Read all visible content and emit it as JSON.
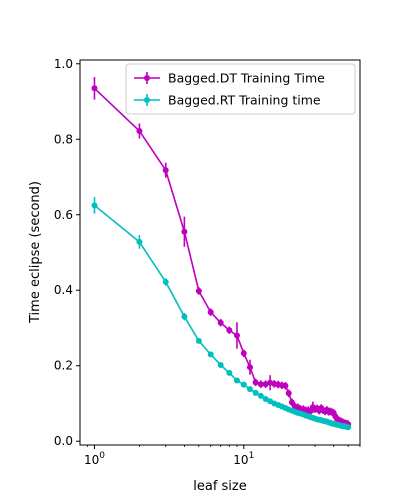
{
  "chart_data": {
    "type": "line",
    "title": "",
    "xlabel": "leaf size",
    "ylabel": "Time eclipse (second)",
    "x_scale": "log",
    "xlim": [
      0.8,
      60
    ],
    "ylim": [
      -0.01,
      1.01
    ],
    "x_ticks": [
      {
        "value": 1,
        "base": "10",
        "exp": "0"
      },
      {
        "value": 10,
        "base": "10",
        "exp": "1"
      }
    ],
    "y_ticks": [
      {
        "value": 0.0,
        "label": "0.0"
      },
      {
        "value": 0.2,
        "label": "0.2"
      },
      {
        "value": 0.4,
        "label": "0.4"
      },
      {
        "value": 0.6,
        "label": "0.6"
      },
      {
        "value": 0.8,
        "label": "0.8"
      },
      {
        "value": 1.0,
        "label": "1.0"
      }
    ],
    "grid": false,
    "legend_position": "top-right",
    "x": [
      1,
      2,
      3,
      4,
      5,
      6,
      7,
      8,
      9,
      10,
      11,
      12,
      13,
      14,
      15,
      16,
      17,
      18,
      19,
      20,
      21,
      22,
      23,
      24,
      25,
      26,
      27,
      28,
      29,
      30,
      31,
      32,
      33,
      34,
      35,
      36,
      37,
      38,
      39,
      40,
      41,
      42,
      43,
      44,
      45,
      46,
      47,
      48,
      49,
      50
    ],
    "series": [
      {
        "name": "Bagged.DT Training Time",
        "color": "#bf00bf",
        "values": [
          0.935,
          0.822,
          0.718,
          0.555,
          0.398,
          0.342,
          0.314,
          0.294,
          0.28,
          0.233,
          0.196,
          0.156,
          0.151,
          0.151,
          0.155,
          0.152,
          0.15,
          0.148,
          0.147,
          0.127,
          0.103,
          0.092,
          0.09,
          0.085,
          0.085,
          0.082,
          0.082,
          0.08,
          0.09,
          0.085,
          0.087,
          0.081,
          0.088,
          0.082,
          0.079,
          0.083,
          0.078,
          0.079,
          0.077,
          0.075,
          0.066,
          0.06,
          0.056,
          0.054,
          0.052,
          0.05,
          0.048,
          0.047,
          0.046,
          0.045
        ],
        "errors": [
          0.03,
          0.02,
          0.02,
          0.04,
          0.01,
          0.01,
          0.01,
          0.01,
          0.035,
          0.01,
          0.02,
          0.01,
          0.01,
          0.01,
          0.02,
          0.01,
          0.01,
          0.01,
          0.01,
          0.01,
          0.01,
          0.01,
          0.01,
          0.01,
          0.01,
          0.01,
          0.01,
          0.01,
          0.015,
          0.01,
          0.01,
          0.01,
          0.01,
          0.01,
          0.01,
          0.01,
          0.01,
          0.01,
          0.01,
          0.01,
          0.01,
          0.01,
          0.01,
          0.01,
          0.01,
          0.01,
          0.01,
          0.01,
          0.01,
          0.01
        ]
      },
      {
        "name": "Bagged.RT Training time",
        "color": "#00bfbf",
        "values": [
          0.625,
          0.528,
          0.422,
          0.33,
          0.266,
          0.23,
          0.202,
          0.181,
          0.161,
          0.15,
          0.138,
          0.128,
          0.12,
          0.112,
          0.106,
          0.1,
          0.096,
          0.092,
          0.088,
          0.084,
          0.081,
          0.078,
          0.075,
          0.073,
          0.071,
          0.068,
          0.066,
          0.064,
          0.062,
          0.06,
          0.058,
          0.057,
          0.056,
          0.054,
          0.053,
          0.052,
          0.05,
          0.049,
          0.047,
          0.046,
          0.045,
          0.044,
          0.043,
          0.042,
          0.041,
          0.04,
          0.04,
          0.039,
          0.038,
          0.037
        ],
        "errors": [
          0.022,
          0.018,
          0.01,
          0.01,
          0.005,
          0.005,
          0.005,
          0.005,
          0.005,
          0.005,
          0.005,
          0.005,
          0.005,
          0.005,
          0.005,
          0.005,
          0.005,
          0.005,
          0.005,
          0.005,
          0.005,
          0.005,
          0.005,
          0.005,
          0.005,
          0.005,
          0.005,
          0.005,
          0.005,
          0.005,
          0.005,
          0.005,
          0.005,
          0.005,
          0.005,
          0.005,
          0.005,
          0.005,
          0.005,
          0.005,
          0.005,
          0.005,
          0.005,
          0.005,
          0.005,
          0.005,
          0.005,
          0.005,
          0.005,
          0.005
        ]
      }
    ]
  }
}
